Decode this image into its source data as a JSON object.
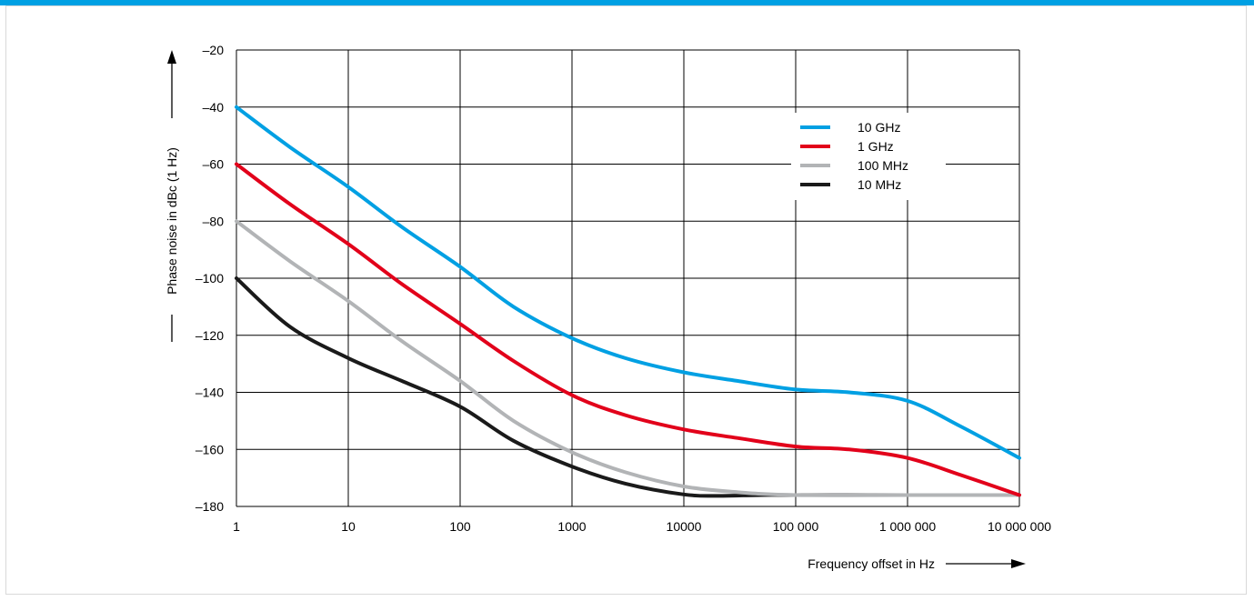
{
  "chart_data": {
    "type": "line",
    "title": "",
    "xlabel": "Frequency offset in Hz",
    "ylabel": "Phase noise in dBc (1 Hz)",
    "x_scale": "log",
    "xlim": [
      1,
      10000000
    ],
    "ylim": [
      -180,
      -20
    ],
    "x_tick_values": [
      1,
      10,
      100,
      1000,
      10000,
      100000,
      1000000,
      10000000
    ],
    "x_tick_labels": [
      "1",
      "10",
      "100",
      "1000",
      "10000",
      "100 000",
      "1 000 000",
      "10 000 000"
    ],
    "y_tick_values": [
      -20,
      -40,
      -60,
      -80,
      -100,
      -120,
      -140,
      -160,
      -180
    ],
    "y_tick_labels": [
      "–20",
      "–40",
      "–60",
      "–80",
      "–100",
      "–120",
      "–140",
      "–160",
      "–180"
    ],
    "grid": true,
    "legend_position": "top-right",
    "series": [
      {
        "name": "10 GHz",
        "color": "#00a0e3",
        "x": [
          1,
          3,
          10,
          30,
          100,
          300,
          1000,
          3000,
          10000,
          30000,
          100000,
          300000,
          1000000,
          3000000,
          10000000
        ],
        "y": [
          -40,
          -54,
          -68,
          -82,
          -96,
          -110,
          -121,
          -128,
          -133,
          -136,
          -139,
          -140,
          -143,
          -152,
          -163
        ]
      },
      {
        "name": "1 GHz",
        "color": "#e2001a",
        "x": [
          1,
          3,
          10,
          30,
          100,
          300,
          1000,
          3000,
          10000,
          30000,
          100000,
          300000,
          1000000,
          3000000,
          10000000
        ],
        "y": [
          -60,
          -74,
          -88,
          -102,
          -116,
          -129,
          -141,
          -148,
          -153,
          -156,
          -159,
          -160,
          -163,
          -169,
          -176
        ]
      },
      {
        "name": "100 MHz",
        "color": "#b2b4b6",
        "x": [
          1,
          3,
          10,
          30,
          100,
          300,
          1000,
          3000,
          10000,
          30000,
          100000,
          1000000,
          10000000
        ],
        "y": [
          -80,
          -94,
          -108,
          -122,
          -136,
          -150,
          -161,
          -168,
          -173,
          -175,
          -176,
          -176,
          -176
        ]
      },
      {
        "name": "10 MHz",
        "color": "#1a1a1a",
        "x": [
          1,
          3,
          10,
          30,
          100,
          300,
          1000,
          3000,
          10000,
          20000,
          50000,
          100000,
          1000000
        ],
        "y": [
          -100,
          -117,
          -128,
          -136,
          -145,
          -157,
          -166,
          -172,
          -175.8,
          -176.3,
          -176,
          -176,
          -176
        ]
      }
    ]
  }
}
